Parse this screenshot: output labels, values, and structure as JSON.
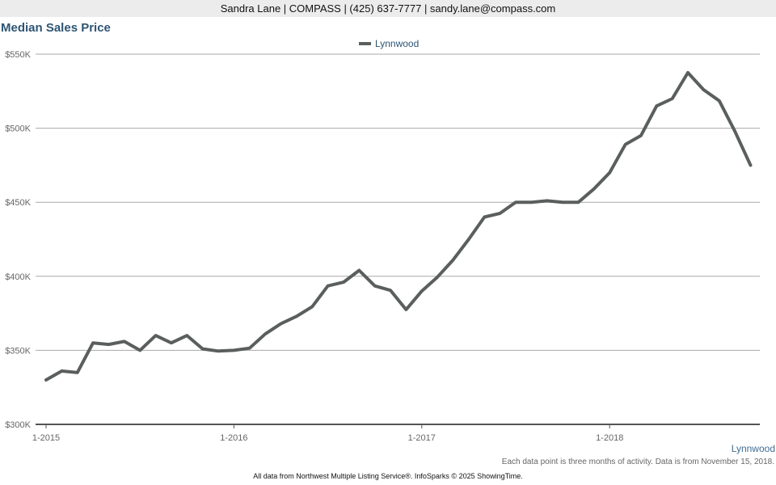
{
  "header": {
    "contact": "Sandra Lane | COMPASS | (425) 637-7777 | sandy.lane@compass.com"
  },
  "region_label": "Lynnwood",
  "note": "Each data point is three months of activity. Data is from November 15, 2018.",
  "footer": "All data from Northwest Multiple Listing Service®. InfoSparks © 2025 ShowingTime.",
  "colors": {
    "series_line": "#5a5f5d",
    "title": "#2f5574",
    "grid": "#a9a9a9"
  },
  "chart_data": {
    "type": "line",
    "title": "Median Sales Price",
    "legend": {
      "position": "top-center"
    },
    "grid": true,
    "x_ticks": [
      "1-2015",
      "1-2016",
      "1-2017",
      "1-2018"
    ],
    "y_ticks": [
      "$300K",
      "$350K",
      "$400K",
      "$450K",
      "$500K",
      "$550K"
    ],
    "ylim": [
      300000,
      550000
    ],
    "x": [
      "2015-01",
      "2015-02",
      "2015-03",
      "2015-04",
      "2015-05",
      "2015-06",
      "2015-07",
      "2015-08",
      "2015-09",
      "2015-10",
      "2015-11",
      "2015-12",
      "2016-01",
      "2016-02",
      "2016-03",
      "2016-04",
      "2016-05",
      "2016-06",
      "2016-07",
      "2016-08",
      "2016-09",
      "2016-10",
      "2016-11",
      "2016-12",
      "2017-01",
      "2017-02",
      "2017-03",
      "2017-04",
      "2017-05",
      "2017-06",
      "2017-07",
      "2017-08",
      "2017-09",
      "2017-10",
      "2017-11",
      "2017-12",
      "2018-01",
      "2018-02",
      "2018-03",
      "2018-04",
      "2018-05",
      "2018-06",
      "2018-07",
      "2018-08",
      "2018-09",
      "2018-10"
    ],
    "series": [
      {
        "name": "Lynnwood",
        "values": [
          330000,
          336000,
          335000,
          355000,
          354000,
          356000,
          350000,
          360000,
          355000,
          360000,
          351000,
          349500,
          350000,
          351500,
          361000,
          368000,
          373000,
          379500,
          393500,
          396000,
          404000,
          393500,
          390500,
          377500,
          390000,
          399500,
          411000,
          425000,
          440000,
          442500,
          450000,
          450000,
          451000,
          450000,
          450000,
          459000,
          470000,
          489000,
          495000,
          515000,
          520000,
          537500,
          526000,
          518500,
          498000,
          475000
        ]
      }
    ]
  }
}
